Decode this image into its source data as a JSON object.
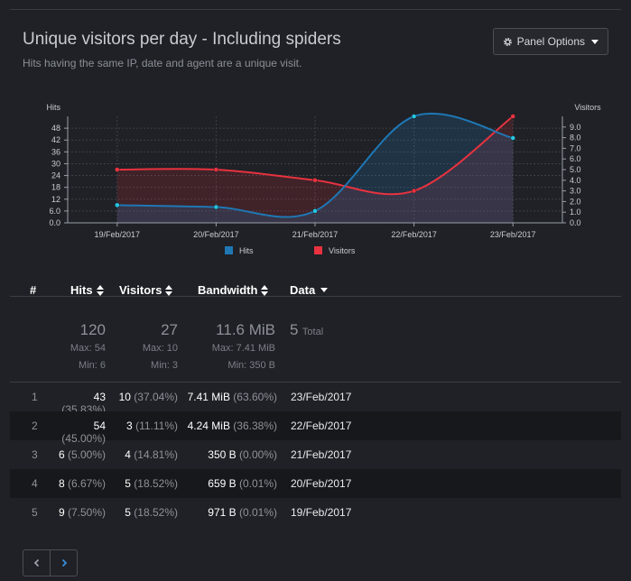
{
  "panel": {
    "title": "Unique visitors per day - Including spiders",
    "subtitle": "Hits having the same IP, date and agent are a unique visit.",
    "options_label": "Panel Options",
    "options_icon": "gear-icon"
  },
  "chart_data": {
    "type": "line",
    "x": [
      "19/Feb/2017",
      "20/Feb/2017",
      "21/Feb/2017",
      "22/Feb/2017",
      "23/Feb/2017"
    ],
    "series": [
      {
        "name": "Hits",
        "axis": "left",
        "color": "#1f77b4",
        "values": [
          9,
          8,
          6,
          54,
          43
        ]
      },
      {
        "name": "Visitors",
        "axis": "right",
        "color": "#e8323f",
        "values": [
          5,
          5,
          4,
          3,
          10
        ]
      }
    ],
    "left_axis": {
      "label": "Hits",
      "ticks": [
        "0.0",
        "6.0",
        "12",
        "18",
        "24",
        "30",
        "36",
        "42",
        "48"
      ],
      "ylim": [
        0,
        54
      ]
    },
    "right_axis": {
      "label": "Visitors",
      "ticks": [
        "0.0",
        "1.0",
        "2.0",
        "3.0",
        "4.0",
        "5.0",
        "6.0",
        "7.0",
        "8.0",
        "9.0"
      ],
      "ylim": [
        0,
        10
      ]
    },
    "legend": [
      "Hits",
      "Visitors"
    ],
    "legend_position": "bottom",
    "grid": true
  },
  "table": {
    "headers": {
      "num": "#",
      "hits": "Hits",
      "visitors": "Visitors",
      "bandwidth": "Bandwidth",
      "data": "Data"
    },
    "summary": {
      "hits": "120",
      "hits_max": "Max: 54",
      "hits_min": "Min: 6",
      "visitors": "27",
      "visitors_max": "Max: 10",
      "visitors_min": "Min: 3",
      "bandwidth": "11.6 MiB",
      "bandwidth_max": "Max: 7.41 MiB",
      "bandwidth_min": "Min: 350 B",
      "data": "5",
      "data_label": "Total"
    },
    "rows": [
      {
        "idx": "1",
        "hits": "43",
        "hits_pct": "(35.83%)",
        "visitors": "10",
        "visitors_pct": "(37.04%)",
        "bw": "7.41 MiB",
        "bw_pct": "(63.60%)",
        "date": "23/Feb/2017"
      },
      {
        "idx": "2",
        "hits": "54",
        "hits_pct": "(45.00%)",
        "visitors": "3",
        "visitors_pct": "(11.11%)",
        "bw": "4.24 MiB",
        "bw_pct": "(36.38%)",
        "date": "22/Feb/2017"
      },
      {
        "idx": "3",
        "hits": "6",
        "hits_pct": "(5.00%)",
        "visitors": "4",
        "visitors_pct": "(14.81%)",
        "bw": "350 B",
        "bw_pct": "(0.00%)",
        "date": "21/Feb/2017"
      },
      {
        "idx": "4",
        "hits": "8",
        "hits_pct": "(6.67%)",
        "visitors": "5",
        "visitors_pct": "(18.52%)",
        "bw": "659 B",
        "bw_pct": "(0.01%)",
        "date": "20/Feb/2017"
      },
      {
        "idx": "5",
        "hits": "9",
        "hits_pct": "(7.50%)",
        "visitors": "5",
        "visitors_pct": "(18.52%)",
        "bw": "971 B",
        "bw_pct": "(0.01%)",
        "date": "19/Feb/2017"
      }
    ]
  },
  "pager": {
    "prev_icon": "chevron-left-icon",
    "next_icon": "chevron-right-icon"
  }
}
